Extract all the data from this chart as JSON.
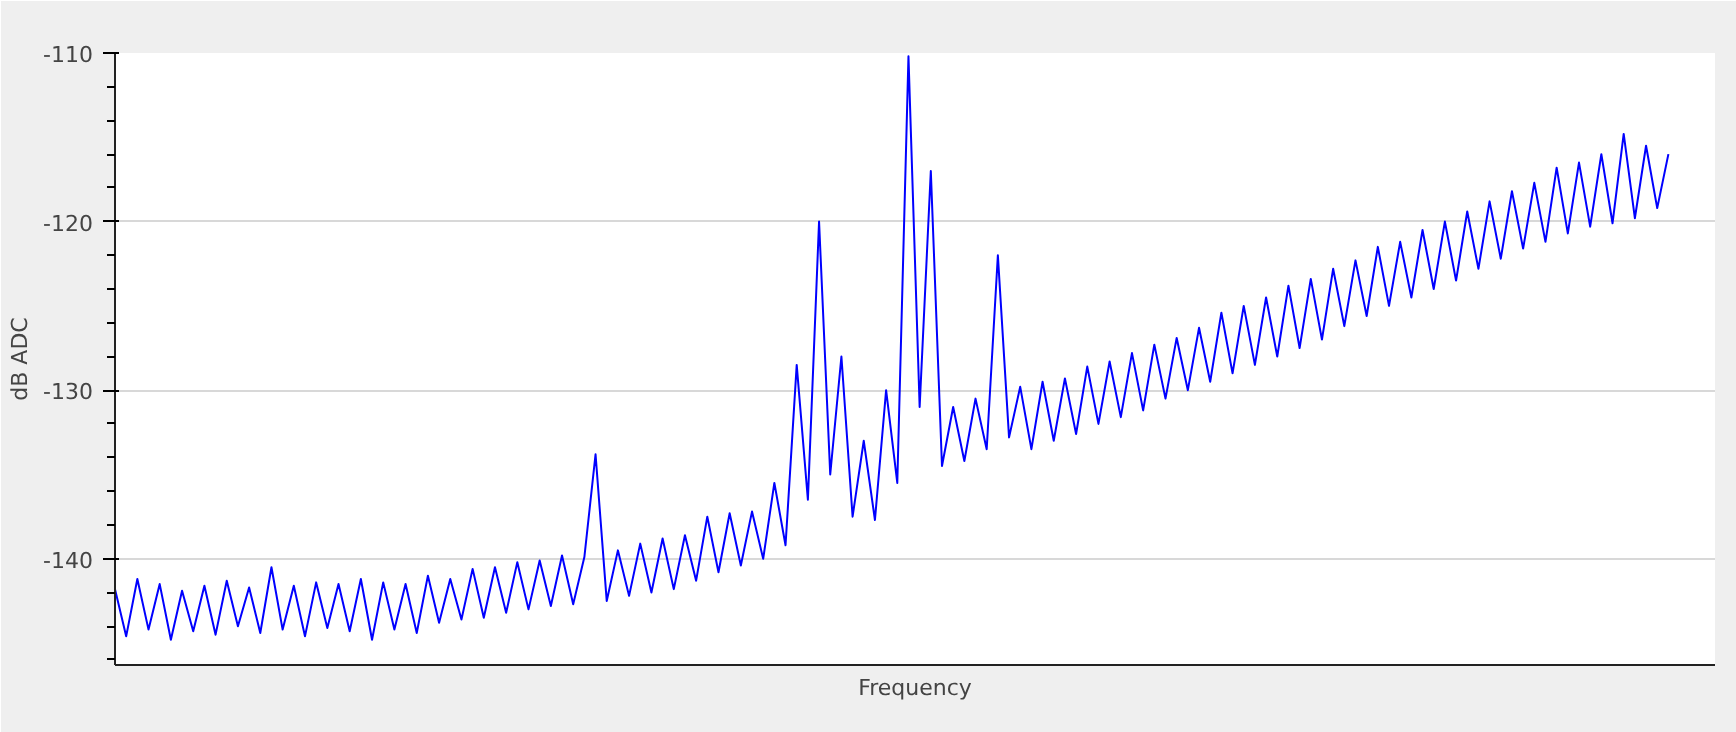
{
  "chart_data": {
    "type": "line",
    "xlabel": "Frequency",
    "ylabel": "dB ADC",
    "categories": [
      null,
      null,
      null,
      null,
      null,
      null,
      null,
      null,
      null,
      null,
      null,
      null,
      null,
      null,
      null,
      null,
      null,
      null,
      null,
      null,
      null,
      null,
      null,
      null,
      null,
      null,
      null,
      null,
      null,
      null,
      null,
      null,
      null,
      null,
      null,
      null,
      null,
      null,
      null,
      null,
      null,
      null,
      null,
      null,
      null,
      null,
      null,
      null,
      null,
      null,
      null,
      null,
      null,
      null,
      null,
      null,
      null,
      null,
      null,
      null,
      null,
      null,
      null,
      null,
      null,
      null,
      null,
      null,
      null,
      null,
      null,
      null,
      null,
      null,
      null,
      null,
      null,
      null,
      null,
      null,
      null,
      null,
      null,
      null,
      null,
      null,
      null,
      null,
      null,
      null,
      null,
      null,
      null,
      null,
      null,
      null,
      null,
      null,
      null,
      null,
      null,
      null,
      null,
      null,
      null,
      null,
      null,
      null,
      null,
      null,
      null,
      null,
      null,
      null,
      null,
      null,
      null,
      null,
      null,
      null,
      null,
      null,
      null,
      null,
      null,
      null,
      null,
      null,
      null,
      null,
      null,
      null,
      null,
      null,
      null,
      null,
      null,
      null,
      null,
      null
    ],
    "series": [
      {
        "color": "#0000ff",
        "values": [
          -141.8,
          -144.6,
          -141.2,
          -144.2,
          -141.5,
          -144.8,
          -141.9,
          -144.3,
          -141.6,
          -144.5,
          -141.3,
          -144.0,
          -141.7,
          -144.4,
          -140.5,
          -144.2,
          -141.6,
          -144.6,
          -141.4,
          -144.1,
          -141.5,
          -144.3,
          -141.2,
          -144.8,
          -141.4,
          -144.2,
          -141.5,
          -144.4,
          -141.0,
          -143.8,
          -141.2,
          -143.6,
          -140.6,
          -143.5,
          -140.5,
          -143.2,
          -140.2,
          -143.0,
          -140.1,
          -142.8,
          -139.8,
          -142.7,
          -139.9,
          -133.8,
          -142.5,
          -139.5,
          -142.2,
          -139.1,
          -142.0,
          -138.8,
          -141.8,
          -138.6,
          -141.3,
          -137.5,
          -140.8,
          -137.3,
          -140.4,
          -137.2,
          -140.0,
          -135.5,
          -139.2,
          -128.5,
          -136.5,
          -120.0,
          -135.0,
          -128.0,
          -137.5,
          -133.0,
          -137.7,
          -130.0,
          -135.5,
          -110.2,
          -131.0,
          -117.0,
          -134.5,
          -131.0,
          -134.2,
          -130.5,
          -133.5,
          -122.0,
          -132.8,
          -129.8,
          -133.5,
          -129.5,
          -133.0,
          -129.3,
          -132.6,
          -128.6,
          -132.0,
          -128.3,
          -131.6,
          -127.8,
          -131.2,
          -127.3,
          -130.5,
          -126.9,
          -130.0,
          -126.3,
          -129.5,
          -125.4,
          -129.0,
          -125.0,
          -128.5,
          -124.5,
          -128.0,
          -123.8,
          -127.5,
          -123.4,
          -127.0,
          -122.8,
          -126.2,
          -122.3,
          -125.6,
          -121.5,
          -125.0,
          -121.2,
          -124.5,
          -120.5,
          -124.0,
          -120.0,
          -123.5,
          -119.4,
          -122.8,
          -118.8,
          -122.2,
          -118.2,
          -121.6,
          -117.7,
          -121.2,
          -116.8,
          -120.7,
          -116.5,
          -120.3,
          -116.0,
          -120.1,
          -114.8,
          -119.8,
          -115.5,
          -119.2,
          -116.0
        ]
      }
    ],
    "ylim": [
      -146.3,
      -110
    ],
    "yticks": [
      -140,
      -130,
      -120,
      -110
    ],
    "grid": "y"
  }
}
